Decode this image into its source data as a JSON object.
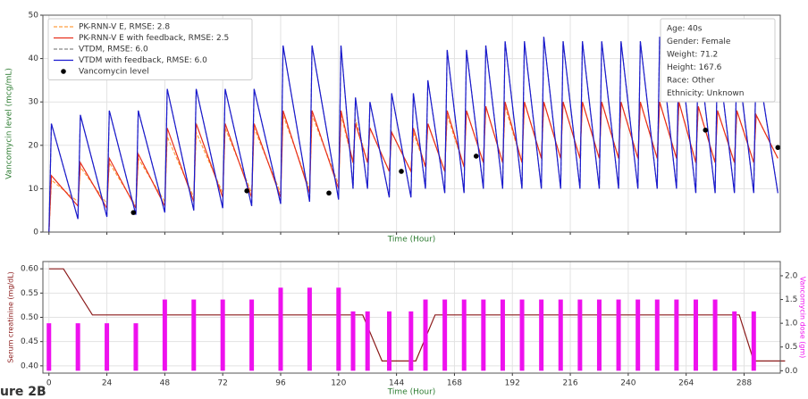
{
  "chart_data": [
    {
      "type": "line",
      "xlabel": "Time (Hour)",
      "ylabel": "Vancomycin level (mcg/mL)",
      "xlim": [
        -2.5,
        303
      ],
      "ylim": [
        0,
        50
      ],
      "xticks": [
        0,
        24,
        48,
        72,
        96,
        120,
        144,
        168,
        192,
        216,
        240,
        264,
        288
      ],
      "show_xtick_labels": false,
      "yticks": [
        0,
        10,
        20,
        30,
        40,
        50
      ],
      "grid": true,
      "legend": "upper left",
      "x": [
        0,
        1,
        12,
        13,
        24,
        25,
        36,
        37,
        48,
        49,
        60,
        61,
        72,
        73,
        84,
        85,
        96,
        97,
        108,
        109,
        120,
        121,
        126,
        127,
        132,
        133,
        141,
        142,
        150,
        151,
        156,
        157,
        164,
        165,
        172,
        173,
        180,
        181,
        188,
        189,
        196,
        197,
        204,
        205,
        212,
        213,
        220,
        221,
        228,
        229,
        236,
        237,
        244,
        245,
        252,
        253,
        260,
        261,
        268,
        269,
        276,
        277,
        284,
        285,
        292,
        293,
        302
      ],
      "series": [
        {
          "name": "PK-RNN-V E, RMSE: 2.8",
          "color": "#ff9f40",
          "style": "dashed",
          "values": [
            0,
            12,
            7,
            15,
            6.5,
            16,
            6,
            17,
            7,
            22,
            8,
            23,
            9,
            24,
            9,
            24,
            9,
            27,
            10,
            27,
            11,
            27,
            16,
            26,
            16,
            24,
            14,
            23,
            14,
            23,
            15,
            25,
            14,
            27,
            15,
            28,
            16,
            29,
            16,
            29,
            16,
            30,
            17,
            30,
            17,
            30,
            17,
            30,
            17,
            30,
            17,
            30,
            17,
            30,
            17,
            30,
            17,
            30,
            16,
            29,
            16,
            28,
            16,
            28,
            16,
            27,
            17
          ]
        },
        {
          "name": "PK-RNN-V E with feedback, RMSE: 2.5",
          "color": "#e8301c",
          "style": "solid",
          "values": [
            0,
            13,
            6,
            16,
            5.5,
            17,
            5.5,
            18,
            6,
            24,
            7,
            25,
            8,
            25,
            8,
            25,
            8,
            28,
            9,
            28,
            10,
            28,
            16,
            25,
            16,
            24,
            14,
            23,
            14,
            24,
            15,
            25,
            14,
            28,
            15,
            28,
            16,
            29,
            16,
            30,
            16,
            30,
            17,
            30,
            17,
            30,
            17,
            30,
            17,
            30,
            17,
            30,
            17,
            30,
            17,
            30,
            17,
            30,
            16,
            29,
            16,
            28,
            16,
            28,
            16,
            27,
            17
          ]
        },
        {
          "name": "VTDM, RMSE: 6.0",
          "color": "#888888",
          "style": "dashed",
          "values": [
            0,
            25,
            3,
            27,
            3.5,
            28,
            4,
            28,
            4.5,
            33,
            5,
            33,
            5.5,
            33,
            6,
            33,
            6.5,
            43,
            7,
            43,
            7.5,
            43,
            10,
            31,
            10,
            30,
            8,
            32,
            8,
            32,
            10,
            35,
            9,
            42,
            9,
            42,
            10,
            43,
            10,
            44,
            10,
            44,
            10,
            45,
            10,
            44,
            10,
            44,
            10,
            44,
            10,
            44,
            10,
            44,
            10,
            45,
            10,
            44,
            9,
            43,
            9,
            42,
            9,
            41,
            9,
            41,
            9
          ]
        },
        {
          "name": "VTDM  with feedback, RMSE: 6.0",
          "color": "#1a1ad0",
          "style": "solid",
          "values": [
            0,
            25,
            3,
            27,
            3.5,
            28,
            4,
            28,
            4.5,
            33,
            5,
            33,
            5.5,
            33,
            6,
            33,
            6.5,
            43,
            7,
            43,
            7.5,
            43,
            10,
            31,
            10,
            30,
            8,
            32,
            8,
            32,
            10,
            35,
            9,
            42,
            9,
            42,
            10,
            43,
            10,
            44,
            10,
            44,
            10,
            45,
            10,
            44,
            10,
            44,
            10,
            44,
            10,
            44,
            10,
            44,
            10,
            45,
            10,
            44,
            9,
            43,
            9,
            42,
            9,
            41,
            9,
            41,
            9
          ]
        },
        {
          "name": "Vancomycin level",
          "color": "#000000",
          "mode": "markers",
          "x": [
            35,
            82,
            116,
            146,
            177,
            272,
            302
          ],
          "values": [
            4.5,
            9.5,
            9,
            14,
            17.5,
            23.5,
            19.5
          ]
        }
      ],
      "annotation": [
        "Age: 40s",
        "Gender: Female",
        "Weight: 71.2",
        "Height: 167.6",
        "Race: Other",
        "Ethnicity: Unknown"
      ]
    },
    {
      "type": "combo",
      "xlabel": "Time (Hour)",
      "ylabel": "Serum creatinine (mg/dL)",
      "y2label": "Vancomycin dose (gm)",
      "xlim": [
        -2.5,
        303
      ],
      "ylim": [
        0.385,
        0.615
      ],
      "y2lim": [
        -0.05,
        2.3
      ],
      "xticks": [
        0,
        24,
        48,
        72,
        96,
        120,
        144,
        168,
        192,
        216,
        240,
        264,
        288
      ],
      "yticks": [
        {
          "value": 0.4,
          "label": "0.40"
        },
        {
          "value": 0.45,
          "label": "0.45"
        },
        {
          "value": 0.5,
          "label": "0.50"
        },
        {
          "value": 0.55,
          "label": "0.55"
        },
        {
          "value": 0.6,
          "label": "0.60"
        }
      ],
      "y2ticks": [
        {
          "value": 0,
          "label": "0.0"
        },
        {
          "value": 0.5,
          "label": "0.5"
        },
        {
          "value": 1,
          "label": "1.0"
        },
        {
          "value": 1.5,
          "label": "1.5"
        },
        {
          "value": 2,
          "label": "2.0"
        }
      ],
      "grid": true,
      "series": [
        {
          "color": "#8b1a1a",
          "style": "solid",
          "x": [
            0,
            6,
            18,
            130,
            138,
            152,
            160,
            286,
            292,
            305
          ],
          "values": [
            0.6,
            0.6,
            0.505,
            0.505,
            0.41,
            0.41,
            0.505,
            0.505,
            0.41,
            0.41
          ]
        },
        {
          "color": "#ee11ee",
          "mode": "bars",
          "axis": "y2",
          "x": [
            0,
            12,
            24,
            36,
            48,
            60,
            72,
            84,
            96,
            108,
            120,
            126,
            132,
            141,
            150,
            156,
            164,
            172,
            180,
            188,
            196,
            204,
            212,
            220,
            228,
            236,
            244,
            252,
            260,
            268,
            276,
            284,
            292
          ],
          "values": [
            1,
            1,
            1,
            1,
            1.5,
            1.5,
            1.5,
            1.5,
            1.75,
            1.75,
            1.75,
            1.25,
            1.25,
            1.25,
            1.25,
            1.5,
            1.5,
            1.5,
            1.5,
            1.5,
            1.5,
            1.5,
            1.5,
            1.5,
            1.5,
            1.5,
            1.5,
            1.5,
            1.5,
            1.5,
            1.5,
            1.25,
            1.25
          ]
        }
      ]
    }
  ],
  "caption": "ure 2B"
}
